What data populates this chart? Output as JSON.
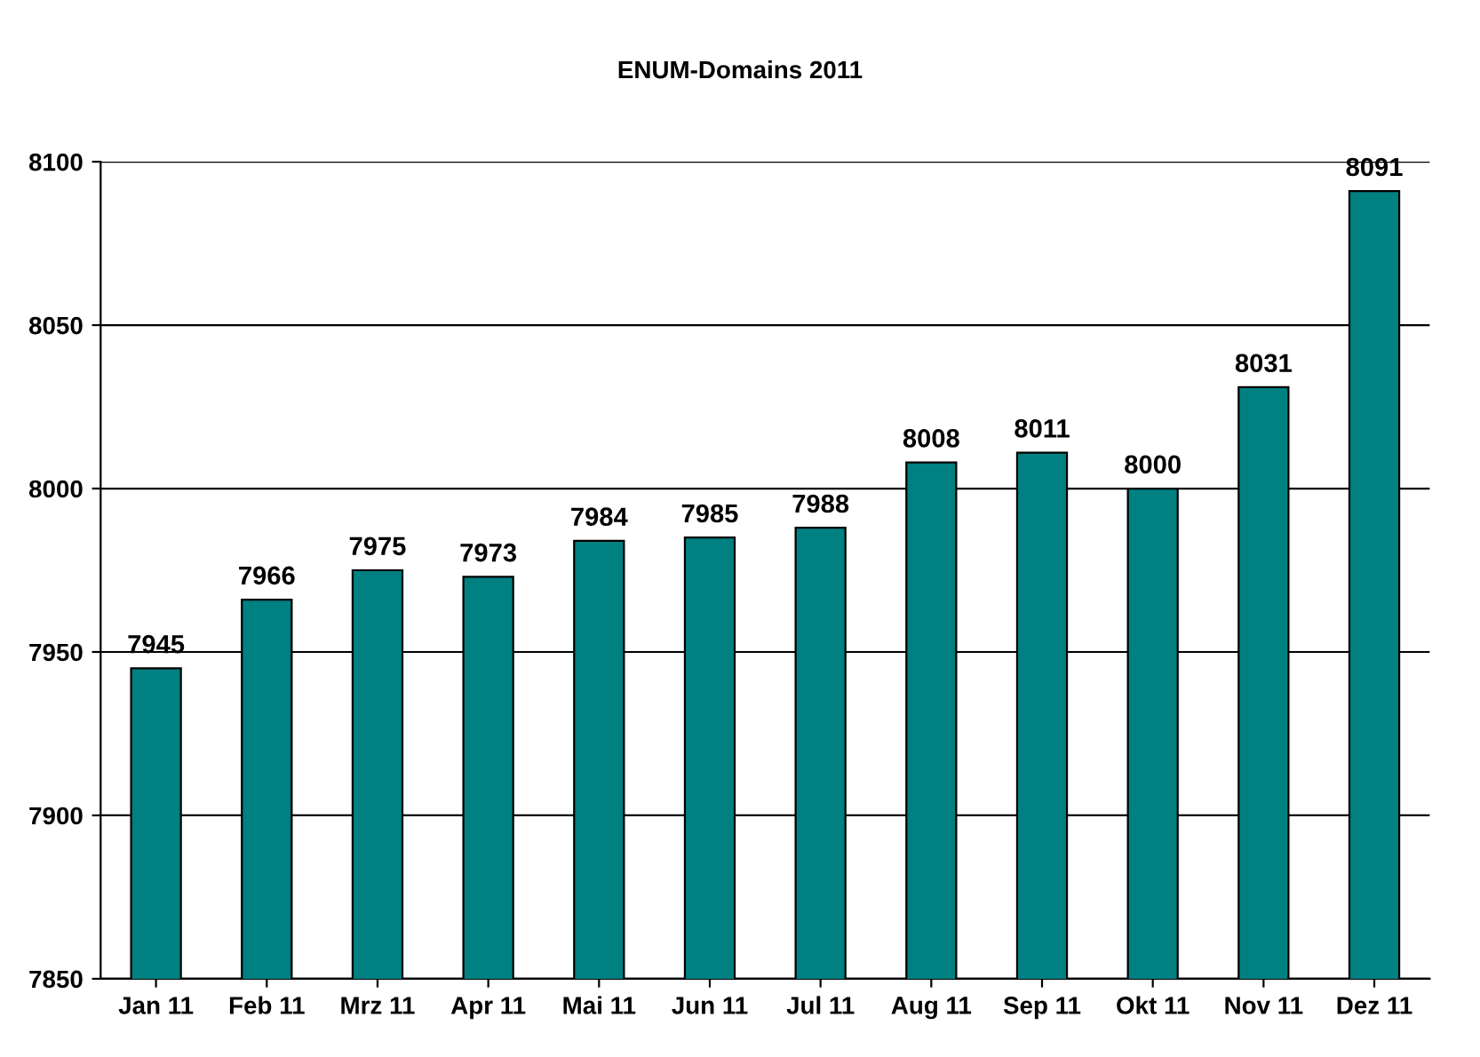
{
  "chart_data": {
    "type": "bar",
    "title": "ENUM-Domains 2011",
    "categories": [
      "Jan 11",
      "Feb 11",
      "Mrz 11",
      "Apr 11",
      "Mai 11",
      "Jun 11",
      "Jul 11",
      "Aug 11",
      "Sep 11",
      "Okt 11",
      "Nov 11",
      "Dez 11"
    ],
    "values": [
      7945,
      7966,
      7975,
      7973,
      7984,
      7985,
      7988,
      8008,
      8011,
      8000,
      8031,
      8091
    ],
    "color": "#008080",
    "ylim": [
      7850,
      8100
    ],
    "yticks": [
      7850,
      7900,
      7950,
      8000,
      8050,
      8100
    ],
    "grid": "y",
    "data_labels": true,
    "legend": false
  }
}
